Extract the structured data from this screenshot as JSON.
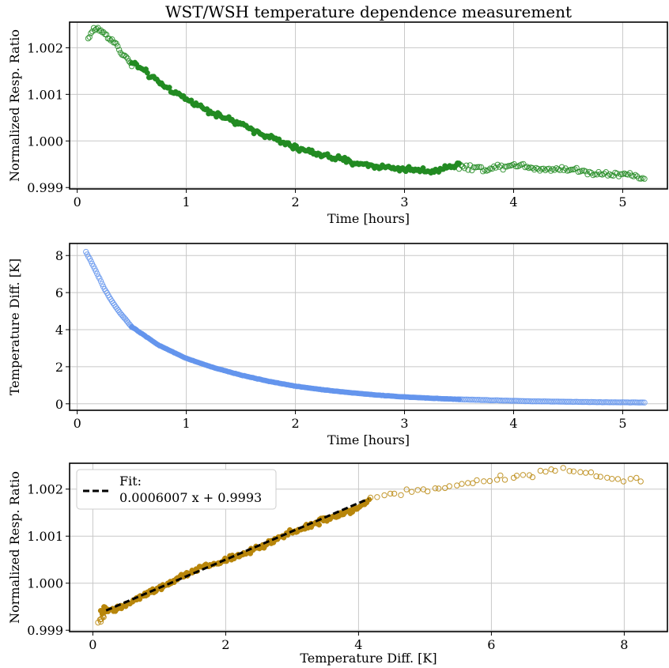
{
  "chart_data": [
    {
      "type": "scatter",
      "title": "WST/WSH temperature dependence measurement",
      "xlabel": "Time [hours]",
      "ylabel": "Normalized Resp. Ratio",
      "xlim": [
        -0.07,
        5.41
      ],
      "ylim": [
        0.99897,
        1.00255
      ],
      "xticks": [
        "0",
        "1",
        "2",
        "3",
        "4",
        "5"
      ],
      "yticks": [
        "0.999",
        "1.000",
        "1.001",
        "1.002"
      ],
      "grid": true,
      "colors": {
        "points": "#228B22"
      },
      "series": [
        {
          "style": "open",
          "x": [
            0.1,
            0.15,
            0.2,
            0.25,
            0.3,
            0.35,
            0.4,
            0.45,
            0.5
          ],
          "y": [
            1.0022,
            1.0024,
            1.0024,
            1.0023,
            1.0022,
            1.0021,
            1.0019,
            1.0018,
            1.0016
          ]
        },
        {
          "style": "filled",
          "x": [
            0.5,
            0.75,
            1.0,
            1.25,
            1.5,
            1.75,
            2.0,
            2.25,
            2.5,
            2.75,
            3.0,
            3.25,
            3.5
          ],
          "y": [
            1.0017,
            1.00125,
            1.0009,
            1.0006,
            1.00035,
            1.0001,
            0.99985,
            0.9997,
            0.99955,
            0.99945,
            0.9994,
            0.99935,
            0.9995
          ]
        },
        {
          "style": "open",
          "x": [
            3.5,
            3.75,
            4.0,
            4.25,
            4.5,
            4.75,
            5.0,
            5.2
          ],
          "y": [
            0.99945,
            0.9994,
            0.9995,
            0.9994,
            0.9994,
            0.9993,
            0.9993,
            0.9992
          ]
        }
      ]
    },
    {
      "type": "scatter",
      "title": "",
      "xlabel": "Time [hours]",
      "ylabel": "Temperature Diff. [K]",
      "xlim": [
        -0.07,
        5.41
      ],
      "ylim": [
        -0.35,
        8.65
      ],
      "xticks": [
        "0",
        "1",
        "2",
        "3",
        "4",
        "5"
      ],
      "yticks": [
        "0",
        "2",
        "4",
        "6",
        "8"
      ],
      "grid": true,
      "colors": {
        "points": "#6495ED"
      },
      "series": [
        {
          "style": "open",
          "x": [
            0.08,
            0.15,
            0.2,
            0.25,
            0.3,
            0.35,
            0.4,
            0.45,
            0.5
          ],
          "y": [
            8.2,
            7.4,
            6.8,
            6.2,
            5.7,
            5.25,
            4.85,
            4.5,
            4.15
          ]
        },
        {
          "style": "filled",
          "x": [
            0.5,
            0.75,
            1.0,
            1.25,
            1.5,
            1.75,
            2.0,
            2.25,
            2.5,
            2.75,
            3.0,
            3.25,
            3.5
          ],
          "y": [
            4.15,
            3.15,
            2.45,
            1.95,
            1.55,
            1.22,
            0.95,
            0.76,
            0.6,
            0.47,
            0.37,
            0.3,
            0.24
          ]
        },
        {
          "style": "open",
          "x": [
            3.5,
            3.75,
            4.0,
            4.25,
            4.5,
            4.75,
            5.0,
            5.2
          ],
          "y": [
            0.24,
            0.2,
            0.16,
            0.13,
            0.11,
            0.09,
            0.08,
            0.07
          ]
        }
      ]
    },
    {
      "type": "scatter",
      "title": "",
      "xlabel": "Temperature Diff. [K]",
      "ylabel": "Normalized Resp. Ratio",
      "xlim": [
        -0.35,
        8.65
      ],
      "ylim": [
        0.99897,
        1.00255
      ],
      "xticks": [
        "0",
        "2",
        "4",
        "6",
        "8"
      ],
      "yticks": [
        "0.999",
        "1.000",
        "1.001",
        "1.002"
      ],
      "grid": true,
      "colors": {
        "points": "#B8860B",
        "fit": "#000000"
      },
      "legend": {
        "placement": "top-left",
        "label_line1": "Fit:",
        "label_line2": "0.0006007 x + 0.9993"
      },
      "fit": {
        "slope": 0.0006007,
        "intercept": 0.9993,
        "x_range": [
          0.2,
          4.15
        ]
      },
      "series": [
        {
          "style": "filled",
          "x": [
            0.1,
            0.3,
            0.5,
            1.0,
            1.5,
            2.0,
            2.5,
            3.0,
            3.5,
            4.0,
            4.15
          ],
          "y": [
            0.9994,
            0.99945,
            0.99955,
            0.9999,
            1.00025,
            1.0005,
            1.00075,
            1.0011,
            1.00135,
            1.0016,
            1.0018
          ]
        },
        {
          "style": "open",
          "x": [
            0.1,
            0.15,
            0.2
          ],
          "y": [
            0.9992,
            0.9993,
            0.9995
          ]
        },
        {
          "style": "open",
          "x": [
            4.2,
            4.5,
            5.0,
            5.5,
            6.0,
            6.5,
            7.0,
            7.5,
            8.0,
            8.25
          ],
          "y": [
            1.0018,
            1.0019,
            1.002,
            1.0021,
            1.0022,
            1.0023,
            1.0024,
            1.0023,
            1.0022,
            1.0022
          ]
        }
      ]
    }
  ]
}
